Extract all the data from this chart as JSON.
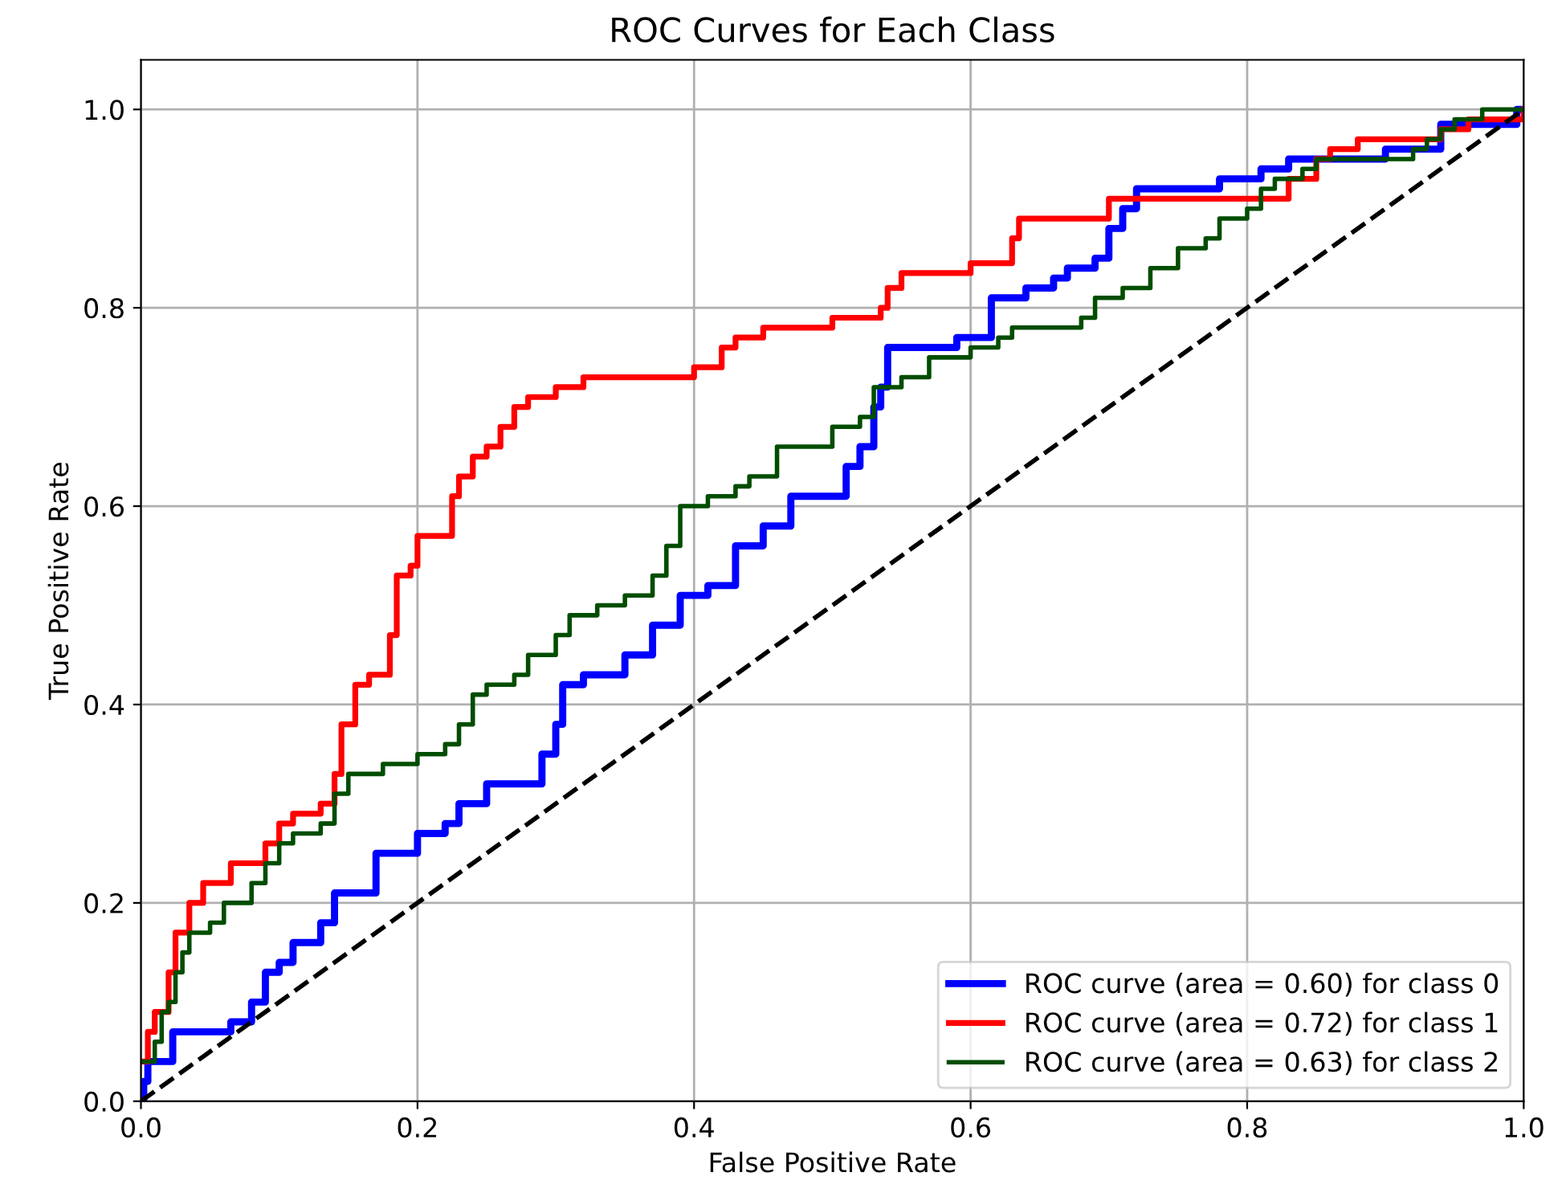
{
  "chart_data": {
    "type": "step",
    "title": "ROC Curves for Each Class",
    "xlabel": "False Positive Rate",
    "ylabel": "True Positive Rate",
    "xlim": [
      0,
      1
    ],
    "ylim": [
      0,
      1.05
    ],
    "xticks": [
      {
        "value": 0,
        "label": "0.0"
      },
      {
        "value": 0.2,
        "label": "0.2"
      },
      {
        "value": 0.4,
        "label": "0.4"
      },
      {
        "value": 0.6,
        "label": "0.6"
      },
      {
        "value": 0.8,
        "label": "0.8"
      },
      {
        "value": 1,
        "label": "1.0"
      }
    ],
    "yticks": [
      {
        "value": 0,
        "label": "0.0"
      },
      {
        "value": 0.2,
        "label": "0.2"
      },
      {
        "value": 0.4,
        "label": "0.4"
      },
      {
        "value": 0.6,
        "label": "0.6"
      },
      {
        "value": 0.8,
        "label": "0.8"
      },
      {
        "value": 1,
        "label": "1.0"
      }
    ],
    "grid": true,
    "legend": "bottom right",
    "series": [
      {
        "name": "ROC curve (area = 0.60) for class 0",
        "color": "#0000ff",
        "x": [
          0,
          0.002,
          0.005,
          0.023,
          0.065,
          0.08,
          0.09,
          0.1,
          0.11,
          0.13,
          0.14,
          0.17,
          0.2,
          0.22,
          0.23,
          0.25,
          0.29,
          0.3,
          0.305,
          0.32,
          0.35,
          0.37,
          0.39,
          0.41,
          0.43,
          0.45,
          0.47,
          0.51,
          0.52,
          0.53,
          0.535,
          0.54,
          0.59,
          0.615,
          0.64,
          0.66,
          0.67,
          0.69,
          0.7,
          0.71,
          0.72,
          0.78,
          0.81,
          0.83,
          0.9,
          0.94,
          0.995,
          1.0
        ],
        "values": [
          0,
          0.02,
          0.04,
          0.07,
          0.08,
          0.1,
          0.13,
          0.14,
          0.16,
          0.18,
          0.21,
          0.25,
          0.27,
          0.28,
          0.3,
          0.32,
          0.35,
          0.38,
          0.42,
          0.43,
          0.45,
          0.48,
          0.51,
          0.52,
          0.56,
          0.58,
          0.61,
          0.64,
          0.66,
          0.7,
          0.72,
          0.76,
          0.77,
          0.81,
          0.82,
          0.83,
          0.84,
          0.85,
          0.88,
          0.9,
          0.92,
          0.93,
          0.94,
          0.95,
          0.96,
          0.985,
          1.0,
          1.0
        ]
      },
      {
        "name": "ROC curve (area = 0.72) for class 1",
        "color": "#ff0000",
        "x": [
          0,
          0.005,
          0.01,
          0.02,
          0.025,
          0.035,
          0.045,
          0.065,
          0.09,
          0.1,
          0.11,
          0.13,
          0.14,
          0.145,
          0.155,
          0.165,
          0.18,
          0.185,
          0.195,
          0.2,
          0.225,
          0.23,
          0.24,
          0.25,
          0.26,
          0.27,
          0.28,
          0.3,
          0.32,
          0.4,
          0.42,
          0.43,
          0.45,
          0.5,
          0.535,
          0.54,
          0.55,
          0.6,
          0.63,
          0.635,
          0.7,
          0.83,
          0.85,
          0.86,
          0.88,
          0.94,
          0.96,
          1.0
        ],
        "values": [
          0.04,
          0.07,
          0.09,
          0.13,
          0.17,
          0.2,
          0.22,
          0.24,
          0.26,
          0.28,
          0.29,
          0.3,
          0.33,
          0.38,
          0.42,
          0.43,
          0.47,
          0.53,
          0.54,
          0.57,
          0.61,
          0.63,
          0.65,
          0.66,
          0.68,
          0.7,
          0.71,
          0.72,
          0.73,
          0.74,
          0.76,
          0.77,
          0.78,
          0.79,
          0.8,
          0.82,
          0.835,
          0.845,
          0.87,
          0.89,
          0.91,
          0.93,
          0.95,
          0.96,
          0.97,
          0.98,
          0.99,
          1.0
        ]
      },
      {
        "name": "ROC curve (area = 0.63) for class 2",
        "color": "#004d00",
        "x": [
          0,
          0.01,
          0.015,
          0.02,
          0.025,
          0.03,
          0.035,
          0.05,
          0.06,
          0.08,
          0.09,
          0.1,
          0.11,
          0.13,
          0.14,
          0.15,
          0.175,
          0.2,
          0.22,
          0.23,
          0.24,
          0.25,
          0.27,
          0.28,
          0.3,
          0.31,
          0.33,
          0.35,
          0.37,
          0.38,
          0.39,
          0.41,
          0.43,
          0.44,
          0.46,
          0.5,
          0.52,
          0.53,
          0.55,
          0.57,
          0.6,
          0.62,
          0.63,
          0.68,
          0.69,
          0.71,
          0.73,
          0.75,
          0.77,
          0.78,
          0.8,
          0.81,
          0.82,
          0.84,
          0.85,
          0.92,
          0.93,
          0.94,
          0.95,
          0.97,
          1.0
        ],
        "values": [
          0.04,
          0.06,
          0.09,
          0.1,
          0.13,
          0.15,
          0.17,
          0.18,
          0.2,
          0.22,
          0.24,
          0.26,
          0.27,
          0.28,
          0.31,
          0.33,
          0.34,
          0.35,
          0.36,
          0.38,
          0.41,
          0.42,
          0.43,
          0.45,
          0.47,
          0.49,
          0.5,
          0.51,
          0.53,
          0.56,
          0.6,
          0.61,
          0.62,
          0.63,
          0.66,
          0.68,
          0.69,
          0.72,
          0.73,
          0.75,
          0.76,
          0.77,
          0.78,
          0.79,
          0.81,
          0.82,
          0.84,
          0.86,
          0.87,
          0.89,
          0.9,
          0.92,
          0.93,
          0.94,
          0.95,
          0.96,
          0.97,
          0.98,
          0.99,
          1.0,
          1.0
        ]
      },
      {
        "type": "line",
        "color": "#000000",
        "line_style": "dashed",
        "x": [
          0,
          1
        ],
        "values": [
          0,
          1
        ]
      }
    ]
  }
}
